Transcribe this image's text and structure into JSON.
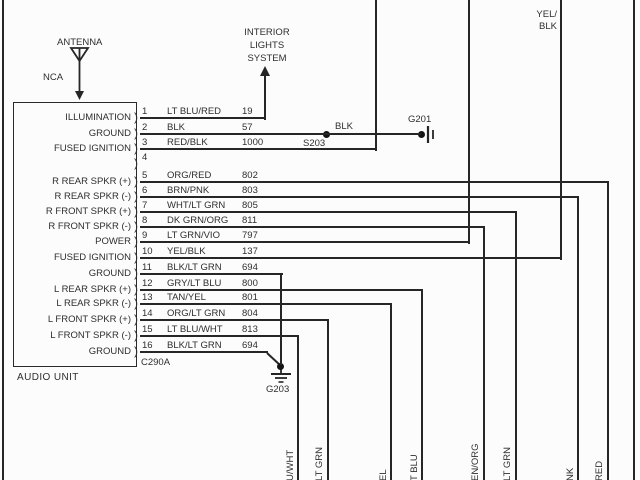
{
  "diagram": {
    "antenna_label": "ANTENNA",
    "antenna_wire_label": "NCA",
    "interior_lights": [
      "INTERIOR",
      "LIGHTS",
      "SYSTEM"
    ],
    "top_right_wire": [
      "YEL/",
      "BLK"
    ],
    "splice_wire_label": "BLK",
    "splice_label": "S203",
    "ground1_label": "G201",
    "ground2_label": "G203",
    "connector_label": "C290A",
    "unit_label": "AUDIO UNIT",
    "pins": [
      {
        "pin": "1",
        "wire_color": "LT BLU/RED",
        "circuit": "19",
        "function": "ILLUMINATION"
      },
      {
        "pin": "2",
        "wire_color": "BLK",
        "circuit": "57",
        "function": "GROUND"
      },
      {
        "pin": "3",
        "wire_color": "RED/BLK",
        "circuit": "1000",
        "function": "FUSED IGNITION"
      },
      {
        "pin": "4",
        "wire_color": "",
        "circuit": "",
        "function": ""
      },
      {
        "pin": "5",
        "wire_color": "ORG/RED",
        "circuit": "802",
        "function": "R REAR SPKR (+)"
      },
      {
        "pin": "6",
        "wire_color": "BRN/PNK",
        "circuit": "803",
        "function": "R REAR SPKR (-)"
      },
      {
        "pin": "7",
        "wire_color": "WHT/LT GRN",
        "circuit": "805",
        "function": "R FRONT SPKR (+)"
      },
      {
        "pin": "8",
        "wire_color": "DK GRN/ORG",
        "circuit": "811",
        "function": "R FRONT SPKR (-)"
      },
      {
        "pin": "9",
        "wire_color": "LT GRN/VIO",
        "circuit": "797",
        "function": "POWER"
      },
      {
        "pin": "10",
        "wire_color": "YEL/BLK",
        "circuit": "137",
        "function": "FUSED IGNITION"
      },
      {
        "pin": "11",
        "wire_color": "BLK/LT GRN",
        "circuit": "694",
        "function": "GROUND"
      },
      {
        "pin": "12",
        "wire_color": "GRY/LT BLU",
        "circuit": "800",
        "function": "L REAR SPKR (+)"
      },
      {
        "pin": "13",
        "wire_color": "TAN/YEL",
        "circuit": "801",
        "function": "L REAR SPKR (-)"
      },
      {
        "pin": "14",
        "wire_color": "ORG/LT GRN",
        "circuit": "804",
        "function": "L FRONT SPKR (+)"
      },
      {
        "pin": "15",
        "wire_color": "LT BLU/WHT",
        "circuit": "813",
        "function": "L FRONT SPKR (-)"
      },
      {
        "pin": "16",
        "wire_color": "BLK/LT GRN",
        "circuit": "694",
        "function": "GROUND"
      }
    ],
    "bottom_wire_labels": [
      "U/WHT",
      "LT GRN",
      "EL",
      "T BLU",
      "EN/ORG",
      "LT GRN",
      "NK",
      "RED"
    ]
  }
}
